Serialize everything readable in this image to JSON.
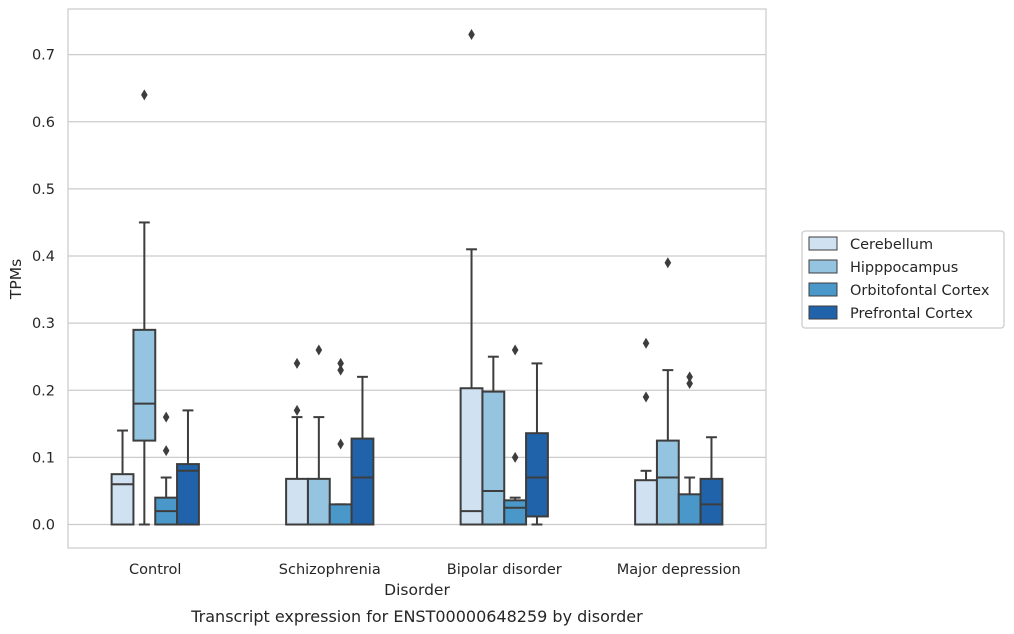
{
  "chart_data": {
    "type": "box",
    "caption": "Transcript expression for ENST00000648259 by disorder",
    "xlabel": "Disorder",
    "ylabel": "TPMs",
    "ylim": [
      -0.035,
      0.768
    ],
    "yticks": [
      0.0,
      0.1,
      0.2,
      0.3,
      0.4,
      0.5,
      0.6,
      0.7
    ],
    "ytick_labels": [
      "0.0",
      "0.1",
      "0.2",
      "0.3",
      "0.4",
      "0.5",
      "0.6",
      "0.7"
    ],
    "grid": "horizontal",
    "legend_position": "right",
    "categories": [
      "Control",
      "Schizophrenia",
      "Bipolar disorder",
      "Major depression"
    ],
    "series": [
      {
        "name": "Cerebellum",
        "color": "#d0e1f2",
        "boxes": [
          {
            "whislo": 0.0,
            "q1": 0.0,
            "med": 0.06,
            "q3": 0.075,
            "whishi": 0.14,
            "fliers": []
          },
          {
            "whislo": 0.0,
            "q1": 0.0,
            "med": 0.0,
            "q3": 0.068,
            "whishi": 0.16,
            "fliers": [
              0.17,
              0.24
            ]
          },
          {
            "whislo": 0.0,
            "q1": 0.0,
            "med": 0.02,
            "q3": 0.203,
            "whishi": 0.41,
            "fliers": [
              0.73
            ]
          },
          {
            "whislo": 0.0,
            "q1": 0.0,
            "med": 0.0,
            "q3": 0.066,
            "whishi": 0.08,
            "fliers": [
              0.19,
              0.27
            ]
          }
        ]
      },
      {
        "name": "Hipppocampus",
        "color": "#94c4df",
        "boxes": [
          {
            "whislo": 0.0,
            "q1": 0.125,
            "med": 0.18,
            "q3": 0.29,
            "whishi": 0.45,
            "fliers": [
              0.64
            ]
          },
          {
            "whislo": 0.0,
            "q1": 0.0,
            "med": 0.0,
            "q3": 0.068,
            "whishi": 0.16,
            "fliers": [
              0.26
            ]
          },
          {
            "whislo": 0.0,
            "q1": 0.0,
            "med": 0.05,
            "q3": 0.198,
            "whishi": 0.25,
            "fliers": []
          },
          {
            "whislo": 0.0,
            "q1": 0.0,
            "med": 0.07,
            "q3": 0.125,
            "whishi": 0.23,
            "fliers": [
              0.39
            ]
          }
        ]
      },
      {
        "name": "Orbitofontal Cortex",
        "color": "#4a98c9",
        "boxes": [
          {
            "whislo": 0.0,
            "q1": 0.0,
            "med": 0.02,
            "q3": 0.04,
            "whishi": 0.07,
            "fliers": [
              0.11,
              0.16
            ]
          },
          {
            "whislo": 0.0,
            "q1": 0.0,
            "med": 0.0,
            "q3": 0.03,
            "whishi": 0.03,
            "fliers": [
              0.12,
              0.23,
              0.24
            ]
          },
          {
            "whislo": 0.0,
            "q1": 0.0,
            "med": 0.025,
            "q3": 0.036,
            "whishi": 0.04,
            "fliers": [
              0.1,
              0.26
            ]
          },
          {
            "whislo": 0.0,
            "q1": 0.0,
            "med": 0.0,
            "q3": 0.045,
            "whishi": 0.07,
            "fliers": [
              0.21,
              0.22
            ]
          }
        ]
      },
      {
        "name": "Prefrontal Cortex",
        "color": "#2163aa",
        "boxes": [
          {
            "whislo": 0.0,
            "q1": 0.0,
            "med": 0.08,
            "q3": 0.09,
            "whishi": 0.17,
            "fliers": []
          },
          {
            "whislo": 0.0,
            "q1": 0.0,
            "med": 0.07,
            "q3": 0.128,
            "whishi": 0.22,
            "fliers": []
          },
          {
            "whislo": 0.0,
            "q1": 0.012,
            "med": 0.07,
            "q3": 0.136,
            "whishi": 0.24,
            "fliers": []
          },
          {
            "whislo": 0.0,
            "q1": 0.0,
            "med": 0.03,
            "q3": 0.068,
            "whishi": 0.13,
            "fliers": []
          }
        ]
      }
    ]
  }
}
